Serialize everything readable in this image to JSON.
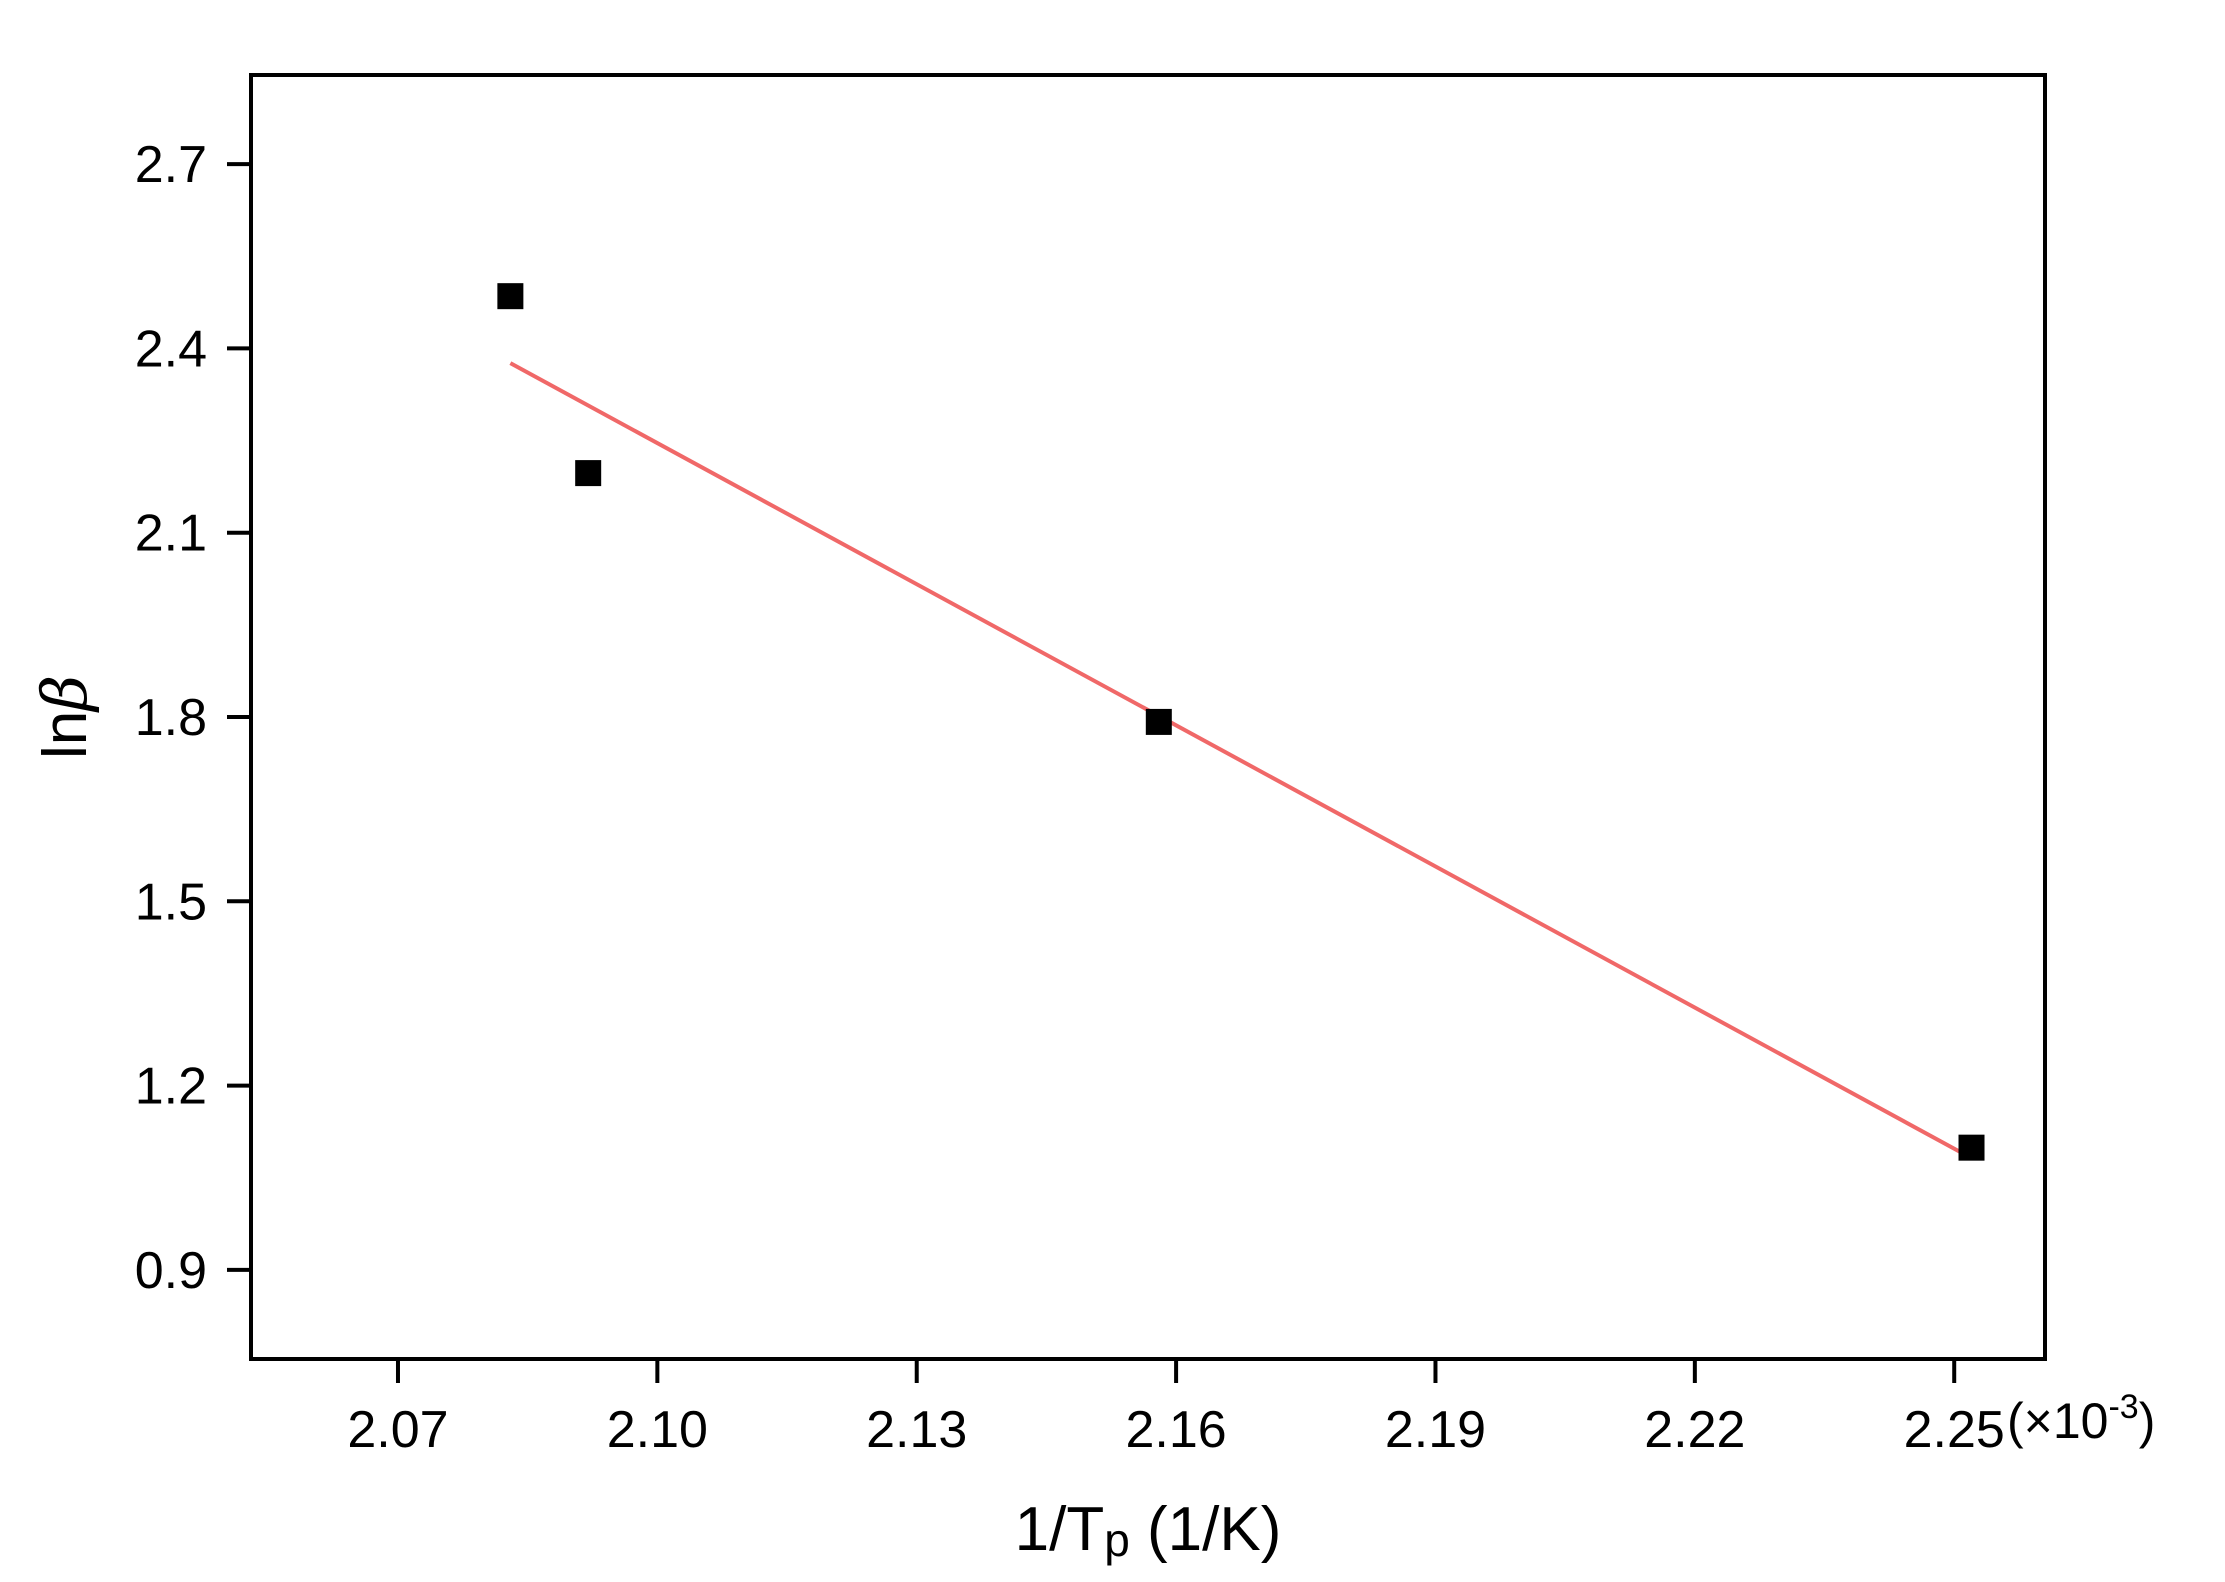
{
  "chart_data": {
    "type": "scatter",
    "xlabel": {
      "main": "1/T",
      "sub": "p",
      "unit": " (1/K)"
    },
    "ylabel": {
      "main": "ln",
      "symbol": "β"
    },
    "x_multiplier": {
      "prefix": "(×10",
      "exponent": "-3",
      "suffix": ")"
    },
    "xlim": [
      2.053,
      2.2605
    ],
    "ylim": [
      0.755,
      2.845
    ],
    "xticks": [
      2.07,
      2.1,
      2.13,
      2.16,
      2.19,
      2.22,
      2.25
    ],
    "xtick_labels": [
      "2.07",
      "2.10",
      "2.13",
      "2.16",
      "2.19",
      "2.22",
      "2.25"
    ],
    "yticks": [
      0.9,
      1.2,
      1.5,
      1.8,
      2.1,
      2.4,
      2.7
    ],
    "ytick_labels": [
      "0.9",
      "1.2",
      "1.5",
      "1.8",
      "2.1",
      "2.4",
      "2.7"
    ],
    "series": [
      {
        "type": "scatter",
        "marker": "square",
        "color": "#000000",
        "x": [
          2.083,
          2.092,
          2.158,
          2.252
        ],
        "y": [
          2.485,
          2.197,
          1.792,
          1.099
        ]
      },
      {
        "type": "line",
        "color": "#f06868",
        "x": [
          2.083,
          2.252
        ],
        "y": [
          2.376,
          1.082
        ]
      }
    ],
    "grid": false,
    "legend": "none"
  }
}
